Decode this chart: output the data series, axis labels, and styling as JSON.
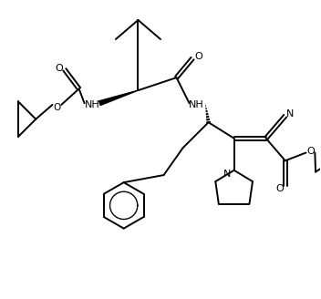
{
  "background": "#ffffff",
  "line_color": "#000000",
  "line_width": 1.4,
  "figsize": [
    3.52,
    3.28
  ],
  "dpi": 100,
  "xlim": [
    0,
    10
  ],
  "ylim": [
    0,
    9.3
  ]
}
